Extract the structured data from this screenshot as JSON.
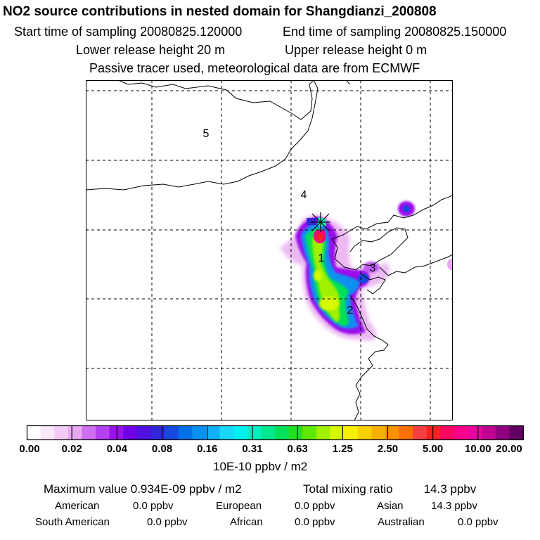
{
  "title": "NO2 source contributions in nested domain for Shangdianzi_200808",
  "sampling": {
    "start": "Start time of sampling 20080825.120000",
    "end": "End time of sampling 20080825.150000"
  },
  "release": {
    "lower": "Lower release height   20 m",
    "upper": "Upper release height    0 m"
  },
  "note": "Passive tracer used, meteorological data are from ECMWF",
  "map": {
    "region_labels": [
      "1",
      "2",
      "3",
      "4",
      "5"
    ],
    "station_marker": "receptor-star"
  },
  "colorbar": {
    "ticks": [
      "0.00",
      "0.02",
      "0.04",
      "0.08",
      "0.16",
      "0.31",
      "0.63",
      "1.25",
      "2.50",
      "5.00",
      "10.00",
      "20.00"
    ],
    "colors": [
      "#ffffff",
      "#fbe8fb",
      "#f3ccf5",
      "#e8a8f0",
      "#d070f0",
      "#b540ee",
      "#9a10ec",
      "#7000e8",
      "#5010e0",
      "#3028d8",
      "#1848e0",
      "#0070e8",
      "#0890f0",
      "#10b0f4",
      "#18d8f8",
      "#00f0f0",
      "#00f0c0",
      "#00e890",
      "#00e058",
      "#20e020",
      "#60e800",
      "#a0f000",
      "#d8f800",
      "#f8f000",
      "#f8d000",
      "#f8b000",
      "#f89000",
      "#f87000",
      "#f84040",
      "#f82020",
      "#f80860",
      "#f8008a",
      "#e800a0",
      "#c00090",
      "#900080",
      "#600060"
    ],
    "units": "10E-10 ppbv / m2"
  },
  "summary": {
    "max_label": "Maximum value  0.934E-09 ppbv / m2",
    "total_label": "Total mixing ratio",
    "total_value": "14.3 ppbv",
    "regions": [
      {
        "name": "American",
        "value": "0.0 ppbv"
      },
      {
        "name": "European",
        "value": "0.0 ppbv"
      },
      {
        "name": "Asian",
        "value": "14.3 ppbv"
      },
      {
        "name": "South American",
        "value": "0.0 ppbv"
      },
      {
        "name": "African",
        "value": "0.0 ppbv"
      },
      {
        "name": "Australian",
        "value": "0.0 ppbv"
      }
    ]
  }
}
